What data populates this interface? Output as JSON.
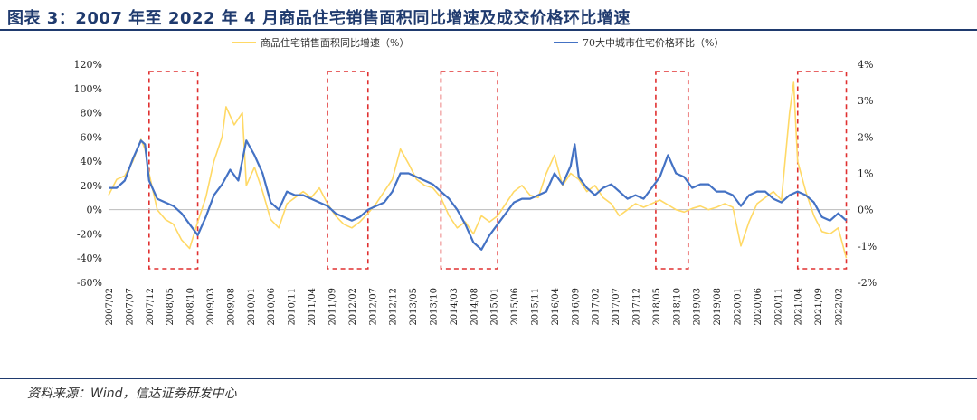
{
  "title": "图表 3：2007 年至 2022 年 4 月商品住宅销售面积同比增速及成交价格环比增速",
  "source": "资料来源：Wind，信达证券研发中心",
  "colors": {
    "title": "#1f3a6e",
    "area_series": "#ffd966",
    "price_series": "#4472c4",
    "highlight_box": "#e03030"
  },
  "chart_data": {
    "type": "line",
    "xlabels": [
      "2007/02",
      "2007/07",
      "2007/12",
      "2008/05",
      "2008/10",
      "2009/03",
      "2009/08",
      "2010/01",
      "2010/06",
      "2010/11",
      "2011/04",
      "2011/09",
      "2012/02",
      "2012/07",
      "2012/12",
      "2013/05",
      "2013/10",
      "2014/03",
      "2014/08",
      "2015/01",
      "2015/06",
      "2015/11",
      "2016/04",
      "2016/09",
      "2017/02",
      "2017/07",
      "2017/12",
      "2018/05",
      "2018/10",
      "2019/03",
      "2019/08",
      "2020/01",
      "2020/06",
      "2020/11",
      "2021/04",
      "2021/09",
      "2022/02"
    ],
    "left_axis": {
      "min": -60,
      "max": 120,
      "ticks": [
        "-60%",
        "-40%",
        "-20%",
        "0%",
        "20%",
        "40%",
        "60%",
        "80%",
        "100%",
        "120%"
      ]
    },
    "right_axis": {
      "min": -2,
      "max": 4,
      "ticks": [
        "-2%",
        "-1%",
        "0%",
        "1%",
        "2%",
        "3%",
        "4%"
      ]
    },
    "legend": {
      "position": "top"
    },
    "series": [
      {
        "name": "商品住宅销售面积同比增速（%）",
        "axis": "left",
        "color": "#ffd966",
        "points": [
          [
            "2007/02",
            12
          ],
          [
            "2007/04",
            25
          ],
          [
            "2007/06",
            28
          ],
          [
            "2007/08",
            40
          ],
          [
            "2007/10",
            58
          ],
          [
            "2007/11",
            50
          ],
          [
            "2007/12",
            30
          ],
          [
            "2008/02",
            0
          ],
          [
            "2008/04",
            -8
          ],
          [
            "2008/06",
            -12
          ],
          [
            "2008/08",
            -25
          ],
          [
            "2008/10",
            -32
          ],
          [
            "2008/12",
            -10
          ],
          [
            "2009/02",
            10
          ],
          [
            "2009/04",
            40
          ],
          [
            "2009/06",
            60
          ],
          [
            "2009/07",
            85
          ],
          [
            "2009/09",
            70
          ],
          [
            "2009/11",
            80
          ],
          [
            "2009/12",
            20
          ],
          [
            "2010/02",
            35
          ],
          [
            "2010/04",
            15
          ],
          [
            "2010/06",
            -8
          ],
          [
            "2010/08",
            -15
          ],
          [
            "2010/10",
            5
          ],
          [
            "2010/12",
            10
          ],
          [
            "2011/02",
            15
          ],
          [
            "2011/04",
            10
          ],
          [
            "2011/06",
            18
          ],
          [
            "2011/08",
            5
          ],
          [
            "2011/10",
            -5
          ],
          [
            "2011/12",
            -12
          ],
          [
            "2012/02",
            -15
          ],
          [
            "2012/04",
            -10
          ],
          [
            "2012/06",
            -3
          ],
          [
            "2012/08",
            5
          ],
          [
            "2012/10",
            15
          ],
          [
            "2012/12",
            25
          ],
          [
            "2013/02",
            50
          ],
          [
            "2013/04",
            38
          ],
          [
            "2013/06",
            25
          ],
          [
            "2013/08",
            20
          ],
          [
            "2013/10",
            18
          ],
          [
            "2013/12",
            10
          ],
          [
            "2014/02",
            -5
          ],
          [
            "2014/04",
            -15
          ],
          [
            "2014/06",
            -10
          ],
          [
            "2014/08",
            -20
          ],
          [
            "2014/10",
            -5
          ],
          [
            "2014/12",
            -10
          ],
          [
            "2015/02",
            -5
          ],
          [
            "2015/04",
            5
          ],
          [
            "2015/06",
            15
          ],
          [
            "2015/08",
            20
          ],
          [
            "2015/10",
            12
          ],
          [
            "2015/12",
            10
          ],
          [
            "2016/02",
            30
          ],
          [
            "2016/04",
            45
          ],
          [
            "2016/06",
            20
          ],
          [
            "2016/08",
            30
          ],
          [
            "2016/10",
            25
          ],
          [
            "2016/12",
            15
          ],
          [
            "2017/02",
            20
          ],
          [
            "2017/04",
            10
          ],
          [
            "2017/06",
            5
          ],
          [
            "2017/08",
            -5
          ],
          [
            "2017/10",
            0
          ],
          [
            "2017/12",
            5
          ],
          [
            "2018/02",
            2
          ],
          [
            "2018/04",
            5
          ],
          [
            "2018/06",
            8
          ],
          [
            "2018/08",
            4
          ],
          [
            "2018/10",
            0
          ],
          [
            "2018/12",
            -2
          ],
          [
            "2019/02",
            1
          ],
          [
            "2019/04",
            3
          ],
          [
            "2019/06",
            0
          ],
          [
            "2019/08",
            2
          ],
          [
            "2019/10",
            5
          ],
          [
            "2019/12",
            2
          ],
          [
            "2020/02",
            -30
          ],
          [
            "2020/04",
            -10
          ],
          [
            "2020/06",
            5
          ],
          [
            "2020/08",
            10
          ],
          [
            "2020/10",
            15
          ],
          [
            "2020/12",
            8
          ],
          [
            "2021/02",
            80
          ],
          [
            "2021/03",
            105
          ],
          [
            "2021/04",
            40
          ],
          [
            "2021/06",
            15
          ],
          [
            "2021/08",
            -5
          ],
          [
            "2021/10",
            -18
          ],
          [
            "2021/12",
            -20
          ],
          [
            "2022/02",
            -15
          ],
          [
            "2022/04",
            -40
          ]
        ]
      },
      {
        "name": "70大中城市住宅价格环比（%）",
        "axis": "right",
        "color": "#4472c4",
        "points": [
          [
            "2007/02",
            0.6
          ],
          [
            "2007/04",
            0.6
          ],
          [
            "2007/06",
            0.8
          ],
          [
            "2007/08",
            1.4
          ],
          [
            "2007/10",
            1.9
          ],
          [
            "2007/11",
            1.8
          ],
          [
            "2007/12",
            0.8
          ],
          [
            "2008/02",
            0.3
          ],
          [
            "2008/04",
            0.2
          ],
          [
            "2008/06",
            0.1
          ],
          [
            "2008/08",
            -0.1
          ],
          [
            "2008/10",
            -0.4
          ],
          [
            "2008/12",
            -0.7
          ],
          [
            "2009/02",
            -0.2
          ],
          [
            "2009/04",
            0.4
          ],
          [
            "2009/06",
            0.7
          ],
          [
            "2009/08",
            1.1
          ],
          [
            "2009/10",
            0.8
          ],
          [
            "2009/12",
            1.9
          ],
          [
            "2010/02",
            1.5
          ],
          [
            "2010/04",
            1.0
          ],
          [
            "2010/06",
            0.2
          ],
          [
            "2010/08",
            0.0
          ],
          [
            "2010/10",
            0.5
          ],
          [
            "2010/12",
            0.4
          ],
          [
            "2011/02",
            0.4
          ],
          [
            "2011/04",
            0.3
          ],
          [
            "2011/06",
            0.2
          ],
          [
            "2011/08",
            0.1
          ],
          [
            "2011/10",
            -0.1
          ],
          [
            "2011/12",
            -0.2
          ],
          [
            "2012/02",
            -0.3
          ],
          [
            "2012/04",
            -0.2
          ],
          [
            "2012/06",
            0.0
          ],
          [
            "2012/08",
            0.1
          ],
          [
            "2012/10",
            0.2
          ],
          [
            "2012/12",
            0.5
          ],
          [
            "2013/02",
            1.0
          ],
          [
            "2013/04",
            1.0
          ],
          [
            "2013/06",
            0.9
          ],
          [
            "2013/08",
            0.8
          ],
          [
            "2013/10",
            0.7
          ],
          [
            "2013/12",
            0.5
          ],
          [
            "2014/02",
            0.3
          ],
          [
            "2014/04",
            0.0
          ],
          [
            "2014/06",
            -0.4
          ],
          [
            "2014/08",
            -0.9
          ],
          [
            "2014/10",
            -1.1
          ],
          [
            "2014/12",
            -0.7
          ],
          [
            "2015/02",
            -0.4
          ],
          [
            "2015/04",
            -0.1
          ],
          [
            "2015/06",
            0.2
          ],
          [
            "2015/08",
            0.3
          ],
          [
            "2015/10",
            0.3
          ],
          [
            "2015/12",
            0.4
          ],
          [
            "2016/02",
            0.5
          ],
          [
            "2016/04",
            1.0
          ],
          [
            "2016/06",
            0.7
          ],
          [
            "2016/08",
            1.2
          ],
          [
            "2016/09",
            1.8
          ],
          [
            "2016/10",
            0.9
          ],
          [
            "2016/12",
            0.6
          ],
          [
            "2017/02",
            0.4
          ],
          [
            "2017/04",
            0.6
          ],
          [
            "2017/06",
            0.7
          ],
          [
            "2017/08",
            0.5
          ],
          [
            "2017/10",
            0.3
          ],
          [
            "2017/12",
            0.4
          ],
          [
            "2018/02",
            0.3
          ],
          [
            "2018/04",
            0.6
          ],
          [
            "2018/06",
            0.9
          ],
          [
            "2018/08",
            1.5
          ],
          [
            "2018/10",
            1.0
          ],
          [
            "2018/12",
            0.9
          ],
          [
            "2019/02",
            0.6
          ],
          [
            "2019/04",
            0.7
          ],
          [
            "2019/06",
            0.7
          ],
          [
            "2019/08",
            0.5
          ],
          [
            "2019/10",
            0.5
          ],
          [
            "2019/12",
            0.4
          ],
          [
            "2020/02",
            0.1
          ],
          [
            "2020/04",
            0.4
          ],
          [
            "2020/06",
            0.5
          ],
          [
            "2020/08",
            0.5
          ],
          [
            "2020/10",
            0.3
          ],
          [
            "2020/12",
            0.2
          ],
          [
            "2021/02",
            0.4
          ],
          [
            "2021/04",
            0.5
          ],
          [
            "2021/06",
            0.4
          ],
          [
            "2021/08",
            0.2
          ],
          [
            "2021/10",
            -0.2
          ],
          [
            "2021/12",
            -0.3
          ],
          [
            "2022/02",
            -0.1
          ],
          [
            "2022/04",
            -0.3
          ]
        ]
      }
    ],
    "highlight_ranges": [
      [
        "2007/12",
        "2008/12"
      ],
      [
        "2011/08",
        "2012/06"
      ],
      [
        "2013/12",
        "2015/02"
      ],
      [
        "2018/05",
        "2019/01"
      ],
      [
        "2021/04",
        "2022/04"
      ]
    ]
  }
}
